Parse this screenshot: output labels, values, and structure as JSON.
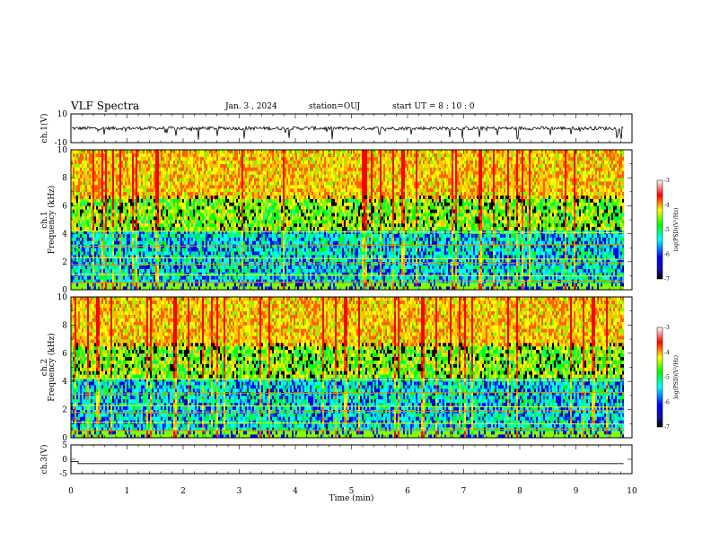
{
  "header": {
    "title": "VLF Spectra",
    "date": "Jan. 3 , 2024",
    "station": "station=OUJ",
    "start_ut": "start UT = 8 : 10 : 0"
  },
  "chart_data": [
    {
      "type": "line",
      "id": "ch1-waveform",
      "ylabel": "ch.1(V)",
      "ylim": [
        -10,
        10
      ],
      "yticks": [
        "10",
        "-10"
      ],
      "xlim": [
        0,
        10
      ],
      "description_values": {
        "mean_level": 0,
        "noise_amplitude": 1.2
      }
    },
    {
      "type": "heatmap",
      "id": "ch1-spectrogram",
      "ylabel": "ch.1 Frequency (kHz)",
      "ylim": [
        0,
        10
      ],
      "yticks": [
        "0",
        "2",
        "4",
        "6",
        "8",
        "10"
      ],
      "xlim": [
        0,
        10
      ],
      "data_end_min": 9.85,
      "colorbar": {
        "label": "log(PSD)(V²/Hz)",
        "range": [
          -7,
          -3
        ],
        "ticks": [
          "-3",
          "-4",
          "-5",
          "-6",
          "-7"
        ]
      }
    },
    {
      "type": "heatmap",
      "id": "ch2-spectrogram",
      "ylabel": "ch.2 Frequency (kHz)",
      "ylim": [
        0,
        10
      ],
      "yticks": [
        "0",
        "2",
        "4",
        "6",
        "8",
        "10"
      ],
      "xlim": [
        0,
        10
      ],
      "data_end_min": 9.85,
      "colorbar": {
        "label": "log(PSD)(V²/Hz)",
        "range": [
          -7,
          -3
        ],
        "ticks": [
          "-3",
          "-4",
          "-5",
          "-6",
          "-7"
        ]
      }
    },
    {
      "type": "line",
      "id": "ch3-waveform",
      "ylabel": "ch.3(V)",
      "ylim": [
        -5,
        5
      ],
      "yticks": [
        "5",
        "0",
        "-5"
      ],
      "xlim": [
        0,
        10
      ],
      "xlabel": "Time (min)",
      "xticks": [
        "0",
        "1",
        "2",
        "3",
        "4",
        "5",
        "6",
        "7",
        "8",
        "9",
        "10"
      ],
      "description_values": {
        "level": -1.5
      }
    }
  ]
}
